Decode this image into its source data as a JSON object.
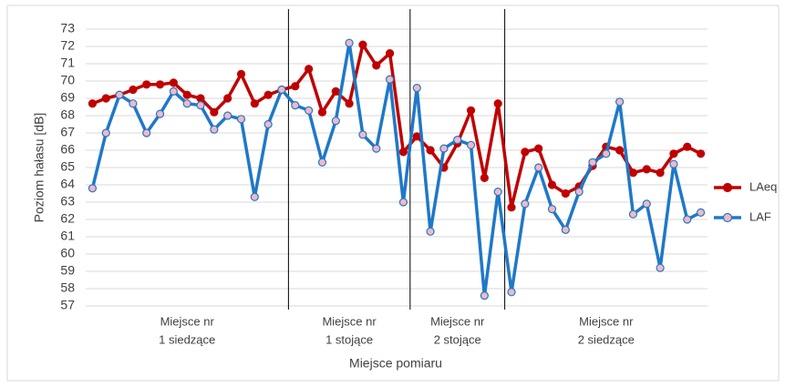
{
  "chart_data": {
    "type": "line",
    "y_label": "Poziom hałasu [dB]",
    "x_label": "Miejsce pomiaru",
    "groups": [
      {
        "label": [
          "Miejsce nr",
          "1 siedzące"
        ],
        "categories": [
          null,
          null,
          null,
          null,
          null,
          null,
          null,
          null,
          null,
          null,
          null,
          null,
          null,
          null,
          null
        ]
      },
      {
        "label": [
          "Miejsce nr",
          "1 stojące"
        ],
        "categories": [
          null,
          null,
          null,
          null,
          null,
          null,
          null,
          null,
          null
        ]
      },
      {
        "label": [
          "Miejsce nr",
          "2 stojące"
        ],
        "categories": [
          null,
          null,
          null,
          null,
          null,
          null,
          null
        ]
      },
      {
        "label": [
          "Miejsce nr",
          "2 siedzące"
        ],
        "categories": [
          null,
          null,
          null,
          null,
          null,
          null,
          null,
          null,
          null,
          null,
          null,
          null,
          null,
          null,
          null
        ]
      }
    ],
    "series": [
      {
        "name": "LAeq",
        "color": "#c00000",
        "marker_fill": "#c00000",
        "values": [
          68.7,
          69.0,
          69.2,
          69.5,
          69.8,
          69.8,
          69.9,
          69.2,
          69.0,
          68.2,
          69.0,
          70.4,
          68.7,
          69.2,
          69.5,
          69.7,
          70.7,
          68.2,
          69.4,
          68.7,
          72.1,
          70.9,
          71.6,
          65.9,
          66.8,
          66.0,
          65.0,
          66.4,
          68.3,
          64.4,
          68.7,
          62.7,
          65.9,
          66.1,
          64.0,
          63.5,
          63.9,
          65.1,
          66.2,
          66.0,
          64.7,
          64.9,
          64.7,
          65.8,
          66.2,
          65.8
        ]
      },
      {
        "name": "LAF",
        "color": "#1f78c8",
        "marker_fill": "#f2b8c6",
        "values": [
          63.8,
          67.0,
          69.2,
          68.7,
          67.0,
          68.1,
          69.4,
          68.7,
          68.6,
          67.2,
          68.0,
          67.8,
          63.3,
          67.5,
          69.5,
          68.6,
          68.3,
          65.3,
          67.7,
          72.2,
          66.9,
          66.1,
          70.1,
          63.0,
          69.6,
          61.3,
          66.1,
          66.6,
          66.3,
          57.6,
          63.6,
          57.8,
          62.9,
          65.0,
          62.6,
          61.4,
          63.6,
          65.3,
          65.8,
          68.8,
          62.3,
          62.9,
          59.2,
          65.2,
          62.0,
          62.4
        ]
      }
    ],
    "ylim": [
      57,
      73
    ],
    "yticks": [
      57,
      58,
      59,
      60,
      61,
      62,
      63,
      64,
      65,
      66,
      67,
      68,
      69,
      70,
      71,
      72,
      73
    ],
    "grid": true,
    "legend": "right"
  }
}
